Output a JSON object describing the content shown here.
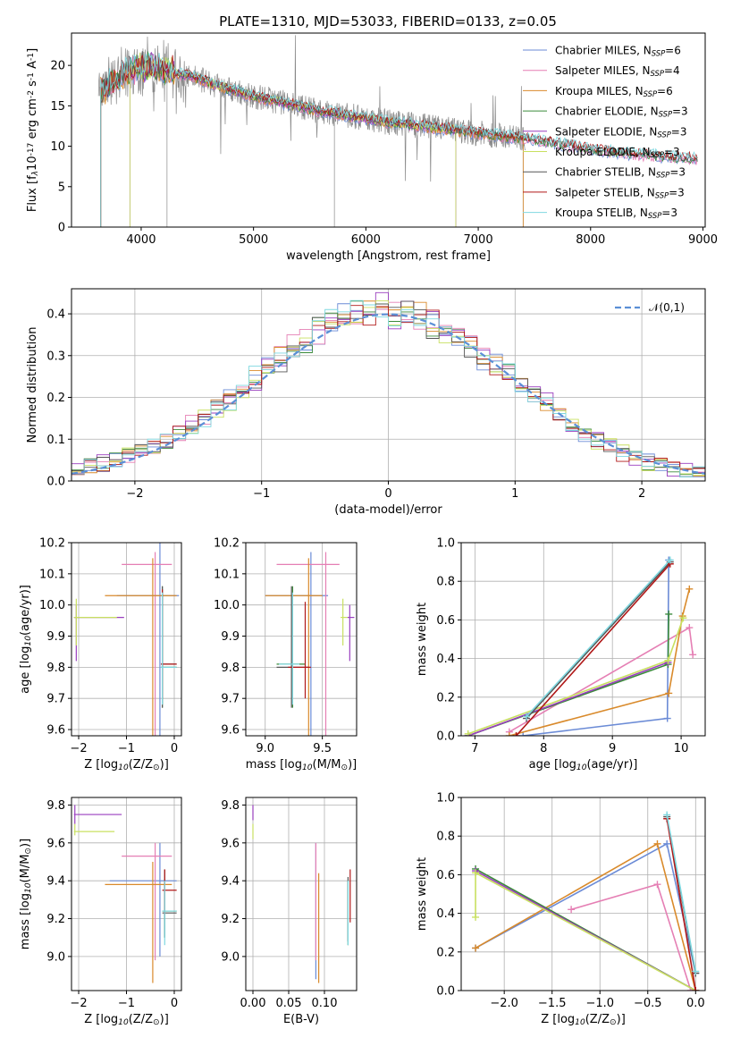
{
  "figure_title": "PLATE=1310, MJD=53033, FIBERID=0133, z=0.05",
  "models": [
    {
      "name": "Chabrier MILES, N$_{SSP}$=6",
      "color": "#6b8bd6"
    },
    {
      "name": "Salpeter MILES, N$_{SSP}$=4",
      "color": "#e57fb4"
    },
    {
      "name": "Kroupa MILES, N$_{SSP}$=6",
      "color": "#d98a2b"
    },
    {
      "name": "Chabrier ELODIE, N$_{SSP}$=3",
      "color": "#3a8a3a"
    },
    {
      "name": "Salpeter ELODIE, N$_{SSP}$=3",
      "color": "#9a3fbf"
    },
    {
      "name": "Kroupa ELODIE, N$_{SSP}$=3",
      "color": "#c8e060"
    },
    {
      "name": "Chabrier STELIB, N$_{SSP}$=3",
      "color": "#555555"
    },
    {
      "name": "Salpeter STELIB, N$_{SSP}$=3",
      "color": "#b01818"
    },
    {
      "name": "Kroupa STELIB, N$_{SSP}$=3",
      "color": "#7fd8e0"
    }
  ],
  "chart_data": [
    {
      "type": "line",
      "title": "PLATE=1310, MJD=53033, FIBERID=0133, z=0.05",
      "xlabel": "wavelength [Angstrom, rest frame]",
      "ylabel": "Flux [f$_\\lambda$10$^{-17}$ erg cm$^{-2}$ s$^{-1}$ A$^{-1}$]",
      "xlim": [
        3380,
        9020
      ],
      "ylim": [
        0,
        24
      ],
      "xticks": [
        4000,
        5000,
        6000,
        7000,
        8000,
        9000
      ],
      "yticks": [
        0,
        5,
        10,
        15,
        20
      ],
      "legend": "top-right",
      "continuum_x": [
        3600,
        3700,
        3800,
        3900,
        4000,
        4100,
        4200,
        4300,
        4400,
        4500,
        4600,
        4700,
        4800,
        4900,
        5000,
        5200,
        5400,
        5600,
        5800,
        6000,
        6200,
        6400,
        6600,
        6800,
        7000,
        7200,
        7400,
        7600,
        7800,
        8000,
        8200,
        8400,
        8600,
        8800,
        9000
      ],
      "continuum_y": [
        16.5,
        17.5,
        18.5,
        19.5,
        19.8,
        20,
        19.6,
        19,
        18.8,
        18.4,
        17.9,
        17.4,
        17,
        16.6,
        16.2,
        15.6,
        15,
        14.3,
        13.9,
        13.4,
        13,
        12.7,
        12.3,
        12,
        11.6,
        11.3,
        11,
        10.6,
        10.1,
        9.6,
        9.3,
        9,
        8.8,
        8.6,
        8.4
      ],
      "model_start": [
        3640,
        3640,
        3640,
        3640,
        3900,
        3900,
        3640,
        3640,
        3640
      ],
      "model_end": [
        8950,
        8950,
        7400,
        8950,
        6800,
        6800,
        8950,
        8950,
        8950
      ]
    },
    {
      "type": "line",
      "xlabel": "(data-model)/error",
      "ylabel": "Normed distribution",
      "xlim": [
        -2.5,
        2.5
      ],
      "ylim": [
        0,
        0.46
      ],
      "xticks": [
        -2,
        -1,
        0,
        1,
        2
      ],
      "yticks": [
        0.0,
        0.1,
        0.2,
        0.3,
        0.4
      ],
      "legend_label": "$\\mathcal{N}(0,1)$",
      "gauss_mean": 0,
      "gauss_sigma": 1,
      "grid": true
    },
    {
      "type": "scatter",
      "xlabel": "Z [log$_{10}$(Z/Z$_\\odot$)]",
      "ylabel": "age  [log$_{10}$(age/yr)]",
      "xlim": [
        -2.15,
        0.15
      ],
      "ylim": [
        9.58,
        10.2
      ],
      "xticks": [
        -2,
        -1,
        0
      ],
      "yticks": [
        9.6,
        9.7,
        9.8,
        9.9,
        10.0,
        10.1,
        10.2
      ],
      "points": [
        {
          "m": 0,
          "x": -0.3,
          "y": 10.03,
          "xe": [
            -1.2,
            0.1
          ],
          "ye": [
            9.58,
            10.2
          ]
        },
        {
          "m": 1,
          "x": -0.4,
          "y": 10.13,
          "xe": [
            -1.1,
            -0.05
          ],
          "ye": [
            9.58,
            10.17
          ]
        },
        {
          "m": 2,
          "x": -0.45,
          "y": 10.03,
          "xe": [
            -1.45,
            0.05
          ],
          "ye": [
            9.58,
            10.15
          ]
        },
        {
          "m": 3,
          "x": -0.25,
          "y": 9.8,
          "xe": [
            -0.28,
            0.05
          ],
          "ye": [
            9.67,
            10.06
          ]
        },
        {
          "m": 4,
          "x": -2.05,
          "y": 9.96,
          "xe": [
            -2.1,
            -1.05
          ],
          "ye": [
            9.82,
            10.0
          ]
        },
        {
          "m": 5,
          "x": -2.05,
          "y": 9.96,
          "xe": [
            -2.1,
            -1.2
          ],
          "ye": [
            9.87,
            10.02
          ]
        },
        {
          "m": 6,
          "x": -0.25,
          "y": 9.81,
          "xe": [
            -0.28,
            0.05
          ],
          "ye": [
            9.67,
            10.06
          ]
        },
        {
          "m": 7,
          "x": -0.25,
          "y": 9.81,
          "xe": [
            -0.28,
            0.05
          ],
          "ye": [
            9.7,
            10.05
          ]
        },
        {
          "m": 8,
          "x": -0.25,
          "y": 9.8,
          "xe": [
            -0.28,
            0.05
          ],
          "ye": [
            9.68,
            10.04
          ]
        }
      ]
    },
    {
      "type": "scatter",
      "xlabel": "mass [log$_{10}$(M/M$_\\odot$)]",
      "ylabel": "",
      "xlim": [
        8.83,
        9.8
      ],
      "ylim": [
        9.58,
        10.2
      ],
      "xticks": [
        9.0,
        9.5
      ],
      "yticks": [
        9.6,
        9.7,
        9.8,
        9.9,
        10.0,
        10.1,
        10.2
      ],
      "points": [
        {
          "m": 0,
          "x": 9.4,
          "y": 10.03,
          "xe": [
            9.0,
            9.55
          ],
          "ye": [
            9.58,
            10.17
          ]
        },
        {
          "m": 1,
          "x": 9.53,
          "y": 10.13,
          "xe": [
            9.1,
            9.65
          ],
          "ye": [
            9.58,
            10.17
          ]
        },
        {
          "m": 2,
          "x": 9.38,
          "y": 10.03,
          "xe": [
            9.0,
            9.5
          ],
          "ye": [
            9.58,
            10.15
          ]
        },
        {
          "m": 3,
          "x": 9.24,
          "y": 9.81,
          "xe": [
            9.1,
            9.35
          ],
          "ye": [
            9.67,
            10.06
          ]
        },
        {
          "m": 4,
          "x": 9.74,
          "y": 9.96,
          "xe": [
            9.72,
            9.78
          ],
          "ye": [
            9.82,
            10.0
          ]
        },
        {
          "m": 5,
          "x": 9.68,
          "y": 9.96,
          "xe": [
            9.66,
            9.72
          ],
          "ye": [
            9.87,
            10.02
          ]
        },
        {
          "m": 6,
          "x": 9.23,
          "y": 9.8,
          "xe": [
            9.1,
            9.38
          ],
          "ye": [
            9.67,
            10.06
          ]
        },
        {
          "m": 7,
          "x": 9.35,
          "y": 9.8,
          "xe": [
            9.2,
            9.4
          ],
          "ye": [
            9.7,
            10.01
          ]
        },
        {
          "m": 8,
          "x": 9.24,
          "y": 9.81,
          "xe": [
            9.12,
            9.3
          ],
          "ye": [
            9.68,
            10.04
          ]
        }
      ]
    },
    {
      "type": "line",
      "xlabel": "age  [log$_{10}$(age/yr)]",
      "ylabel": "mass weight",
      "xlim": [
        6.8,
        10.35
      ],
      "ylim": [
        0,
        1
      ],
      "xticks": [
        7,
        8,
        9,
        10
      ],
      "yticks": [
        0.0,
        0.2,
        0.4,
        0.6,
        0.8,
        1.0
      ],
      "series": [
        {
          "m": 0,
          "x": [
            7.7,
            9.8,
            9.82
          ],
          "y": [
            0.0,
            0.09,
            0.91
          ]
        },
        {
          "m": 1,
          "x": [
            7.5,
            10.12,
            10.17
          ],
          "y": [
            0.02,
            0.56,
            0.42
          ]
        },
        {
          "m": 2,
          "x": [
            7.5,
            9.82,
            10.02,
            10.12
          ],
          "y": [
            0.0,
            0.22,
            0.62,
            0.76
          ]
        },
        {
          "m": 3,
          "x": [
            6.9,
            9.81,
            9.82
          ],
          "y": [
            0.0,
            0.37,
            0.63
          ]
        },
        {
          "m": 4,
          "x": [
            6.9,
            9.81
          ],
          "y": [
            0.0,
            0.38
          ]
        },
        {
          "m": 5,
          "x": [
            6.9,
            9.81,
            10.03
          ],
          "y": [
            0.01,
            0.39,
            0.61
          ]
        },
        {
          "m": 6,
          "x": [
            7.75,
            9.84
          ],
          "y": [
            0.09,
            0.9
          ]
        },
        {
          "m": 7,
          "x": [
            7.6,
            9.84
          ],
          "y": [
            0.0,
            0.89
          ]
        },
        {
          "m": 8,
          "x": [
            7.75,
            9.84
          ],
          "y": [
            0.1,
            0.91
          ]
        }
      ]
    },
    {
      "type": "scatter",
      "xlabel": "Z [log$_{10}$(Z/Z$_\\odot$)]",
      "ylabel": "mass [log$_{10}$(M/M$_\\odot$)]",
      "xlim": [
        -2.15,
        0.15
      ],
      "ylim": [
        8.82,
        9.84
      ],
      "xticks": [
        -2,
        -1,
        0
      ],
      "yticks": [
        9.0,
        9.2,
        9.4,
        9.6,
        9.8
      ],
      "points": [
        {
          "m": 0,
          "x": -0.3,
          "y": 9.4,
          "xe": [
            -1.35,
            0.05
          ],
          "ye": [
            9.0,
            9.6
          ]
        },
        {
          "m": 1,
          "x": -0.4,
          "y": 9.53,
          "xe": [
            -1.1,
            -0.05
          ],
          "ye": [
            8.98,
            9.6
          ]
        },
        {
          "m": 2,
          "x": -0.45,
          "y": 9.38,
          "xe": [
            -1.45,
            -0.05
          ],
          "ye": [
            8.86,
            9.5
          ]
        },
        {
          "m": 3,
          "x": -0.2,
          "y": 9.24,
          "xe": [
            -0.25,
            0.05
          ],
          "ye": [
            9.1,
            9.4
          ]
        },
        {
          "m": 4,
          "x": -2.08,
          "y": 9.75,
          "xe": [
            -2.1,
            -1.1
          ],
          "ye": [
            9.7,
            9.8
          ]
        },
        {
          "m": 5,
          "x": -2.08,
          "y": 9.66,
          "xe": [
            -2.1,
            -1.25
          ],
          "ye": [
            9.64,
            9.7
          ]
        },
        {
          "m": 6,
          "x": -0.2,
          "y": 9.23,
          "xe": [
            -0.25,
            0.05
          ],
          "ye": [
            9.1,
            9.46
          ]
        },
        {
          "m": 7,
          "x": -0.2,
          "y": 9.35,
          "xe": [
            -0.25,
            0.05
          ],
          "ye": [
            9.22,
            9.46
          ]
        },
        {
          "m": 8,
          "x": -0.2,
          "y": 9.24,
          "xe": [
            -0.25,
            0.05
          ],
          "ye": [
            9.06,
            9.4
          ]
        }
      ]
    },
    {
      "type": "scatter",
      "xlabel": "E(B-V)",
      "ylabel": "",
      "xlim": [
        -0.01,
        0.145
      ],
      "ylim": [
        8.82,
        9.84
      ],
      "xticks": [
        0.0,
        0.05,
        0.1
      ],
      "yticks": [
        9.0,
        9.2,
        9.4,
        9.6,
        9.8
      ],
      "points": [
        {
          "m": 0,
          "x": 0.088,
          "y": 9.4,
          "ye": [
            8.88,
            9.6
          ]
        },
        {
          "m": 1,
          "x": 0.088,
          "y": 9.53,
          "ye": [
            8.98,
            9.6
          ]
        },
        {
          "m": 2,
          "x": 0.092,
          "y": 9.38,
          "ye": [
            8.86,
            9.44
          ]
        },
        {
          "m": 3,
          "x": 0.133,
          "y": 9.24,
          "ye": [
            9.06,
            9.4
          ]
        },
        {
          "m": 4,
          "x": 0.0,
          "y": 9.75,
          "ye": [
            9.72,
            9.8
          ]
        },
        {
          "m": 5,
          "x": 0.0,
          "y": 9.66,
          "ye": [
            9.62,
            9.7
          ]
        },
        {
          "m": 6,
          "x": 0.133,
          "y": 9.23,
          "ye": [
            9.08,
            9.42
          ]
        },
        {
          "m": 7,
          "x": 0.136,
          "y": 9.35,
          "ye": [
            9.18,
            9.46
          ]
        },
        {
          "m": 8,
          "x": 0.133,
          "y": 9.24,
          "ye": [
            9.06,
            9.4
          ]
        }
      ]
    },
    {
      "type": "line",
      "xlabel": "Z [log$_{10}$(Z/Z$_\\odot$)]",
      "ylabel": "mass weight",
      "xlim": [
        -2.45,
        0.1
      ],
      "ylim": [
        0,
        1
      ],
      "xticks": [
        -2.0,
        -1.5,
        -1.0,
        -0.5,
        0.0
      ],
      "yticks": [
        0.0,
        0.2,
        0.4,
        0.6,
        0.8,
        1.0
      ],
      "series": [
        {
          "m": 0,
          "x": [
            -2.3,
            -0.3,
            0.0
          ],
          "y": [
            0.22,
            0.76,
            0.09
          ]
        },
        {
          "m": 1,
          "x": [
            -1.3,
            -0.4,
            -0.05
          ],
          "y": [
            0.42,
            0.55,
            0.0
          ]
        },
        {
          "m": 2,
          "x": [
            -2.3,
            -0.4,
            0.0
          ],
          "y": [
            0.22,
            0.76,
            0.0
          ]
        },
        {
          "m": 3,
          "x": [
            -2.3,
            0.0
          ],
          "y": [
            0.63,
            0.0
          ]
        },
        {
          "m": 4,
          "x": [
            -2.3,
            0.0
          ],
          "y": [
            0.62,
            0.0
          ]
        },
        {
          "m": 5,
          "x": [
            -2.3,
            -2.3,
            0.0
          ],
          "y": [
            0.38,
            0.61,
            0.0
          ]
        },
        {
          "m": 6,
          "x": [
            -0.3,
            0.0
          ],
          "y": [
            0.9,
            0.09
          ]
        },
        {
          "m": 7,
          "x": [
            -0.3,
            0.0
          ],
          "y": [
            0.89,
            0.0
          ]
        },
        {
          "m": 8,
          "x": [
            -0.3,
            0.0
          ],
          "y": [
            0.91,
            0.1
          ]
        }
      ]
    }
  ]
}
